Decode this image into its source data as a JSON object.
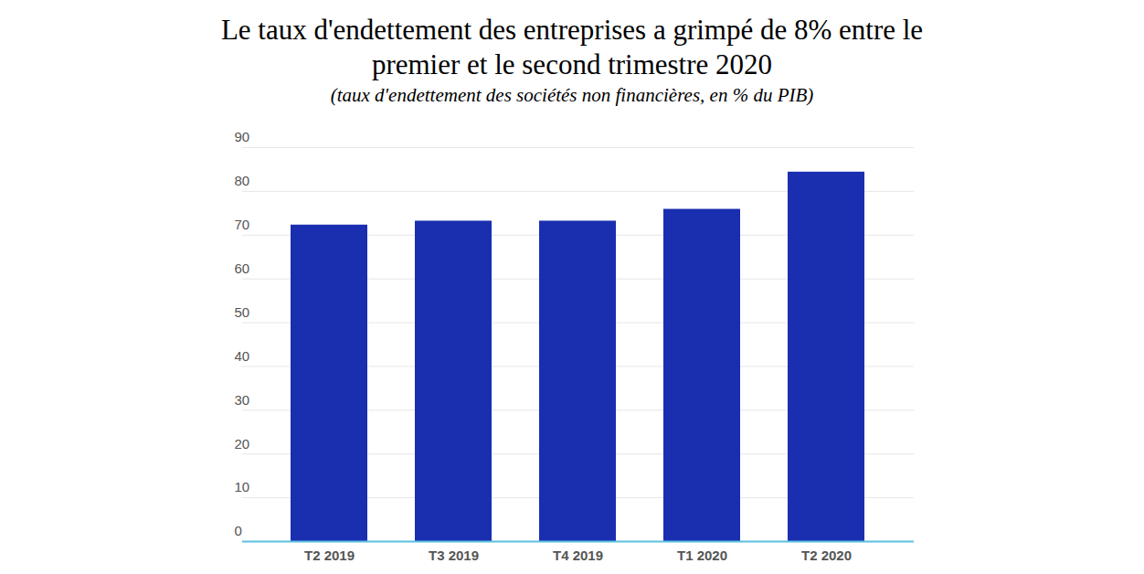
{
  "chart_data": {
    "type": "bar",
    "title": "Le taux d'endettement des entreprises a grimpé de 8% entre le premier et le second trimestre 2020",
    "subtitle": "(taux d'endettement des sociétés non financières, en % du PIB)",
    "categories": [
      "T2 2019",
      "T3 2019",
      "T4 2019",
      "T1 2020",
      "T2 2020"
    ],
    "values": [
      72.3,
      73.2,
      73.2,
      75.9,
      84.4
    ],
    "color": "#1a2eb0",
    "ylim": [
      0,
      90
    ],
    "yticks": [
      0,
      10,
      20,
      30,
      40,
      50,
      60,
      70,
      80,
      90
    ],
    "grid": true
  }
}
